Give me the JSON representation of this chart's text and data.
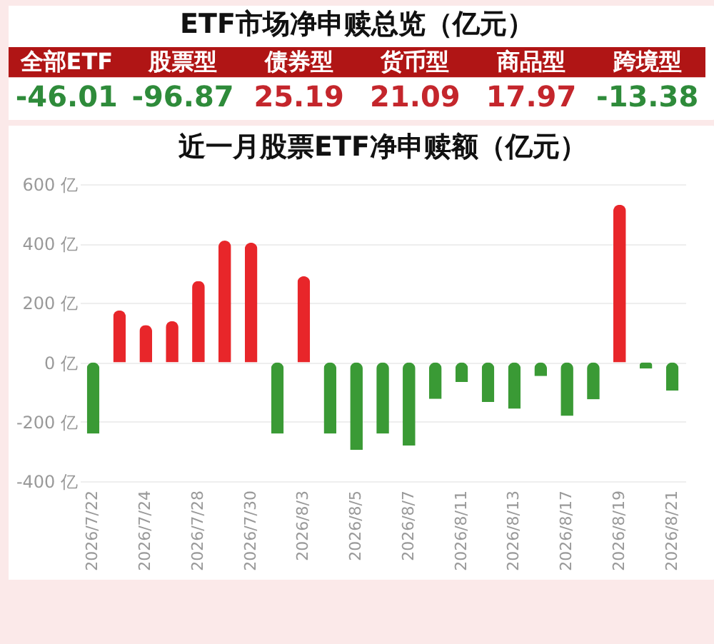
{
  "chart_data": [
    {
      "type": "other",
      "title": "ETF市场净申赎总览（亿元）",
      "categories": [
        "全部ETF",
        "股票型",
        "债券型",
        "货币型",
        "商品型",
        "跨境型"
      ],
      "values": [
        -46.01,
        -96.87,
        25.19,
        21.09,
        17.97,
        -13.38
      ],
      "data_labels": true
    },
    {
      "type": "bar",
      "title": "近一月股票ETF净申赎额（亿元）",
      "categories": [
        "2026/7/22",
        null,
        "2026/7/24",
        null,
        "2026/7/28",
        null,
        "2026/7/30",
        null,
        "2026/8/3",
        null,
        "2026/8/5",
        null,
        "2026/8/7",
        null,
        "2026/8/11",
        null,
        "2026/8/13",
        null,
        "2026/8/17",
        null,
        "2026/8/19",
        null,
        "2026/8/21"
      ],
      "values": [
        -240,
        175,
        126,
        139,
        274,
        410,
        403,
        -240,
        290,
        -240,
        -295,
        -240,
        -280,
        -123,
        -66,
        -133,
        -156,
        -46,
        -180,
        -125,
        531,
        -21,
        -95
      ],
      "colors": [
        "#3a9a35",
        "#e8262a",
        "#e8262a",
        "#e8262a",
        "#e8262a",
        "#e8262a",
        "#e8262a",
        "#3a9a35",
        "#e8262a",
        "#3a9a35",
        "#3a9a35",
        "#3a9a35",
        "#3a9a35",
        "#3a9a35",
        "#3a9a35",
        "#3a9a35",
        "#3a9a35",
        "#3a9a35",
        "#3a9a35",
        "#3a9a35",
        "#e8262a",
        "#3a9a35",
        "#3a9a35"
      ],
      "ylim": [
        -400,
        600
      ],
      "yticks": [
        {
          "value": -400,
          "label": "-400 亿"
        },
        {
          "value": -200,
          "label": "-200 亿"
        },
        {
          "value": 0,
          "label": "0 亿"
        },
        {
          "value": 200,
          "label": "200 亿"
        },
        {
          "value": 400,
          "label": "400 亿"
        },
        {
          "value": 600,
          "label": "600 亿"
        }
      ],
      "grid": "y"
    }
  ]
}
